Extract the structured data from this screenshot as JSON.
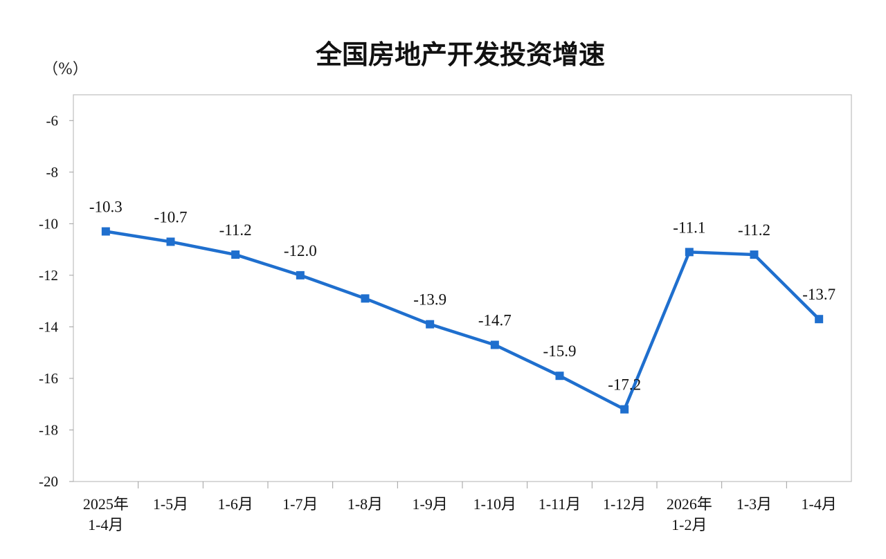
{
  "chart_data": {
    "type": "line",
    "title": "全国房地产开发投资增速",
    "unit_label": "（%）",
    "categories": [
      [
        "2025年",
        "1-4月"
      ],
      [
        "1-5月"
      ],
      [
        "1-6月"
      ],
      [
        "1-7月"
      ],
      [
        "1-8月"
      ],
      [
        "1-9月"
      ],
      [
        "1-10月"
      ],
      [
        "1-11月"
      ],
      [
        "1-12月"
      ],
      [
        "2026年",
        "1-2月"
      ],
      [
        "1-3月"
      ],
      [
        "1-4月"
      ]
    ],
    "series": [
      {
        "values": [
          -10.3,
          -10.7,
          -11.2,
          -12.0,
          -12.9,
          -13.9,
          -14.7,
          -15.9,
          -17.2,
          -11.1,
          -11.2,
          -13.7
        ],
        "data_labels": [
          "-10.3",
          "-10.7",
          "-11.2",
          "-12.0",
          null,
          "-13.9",
          "-14.7",
          "-15.9",
          "-17.2",
          "-11.1",
          "-11.2",
          "-13.7"
        ],
        "color": "#1f6fce"
      }
    ],
    "yticks": [
      "-6",
      "-8",
      "-10",
      "-12",
      "-14",
      "-16",
      "-18",
      "-20"
    ],
    "ylim": [
      -20,
      -5
    ],
    "grid": false,
    "marker": "square"
  }
}
